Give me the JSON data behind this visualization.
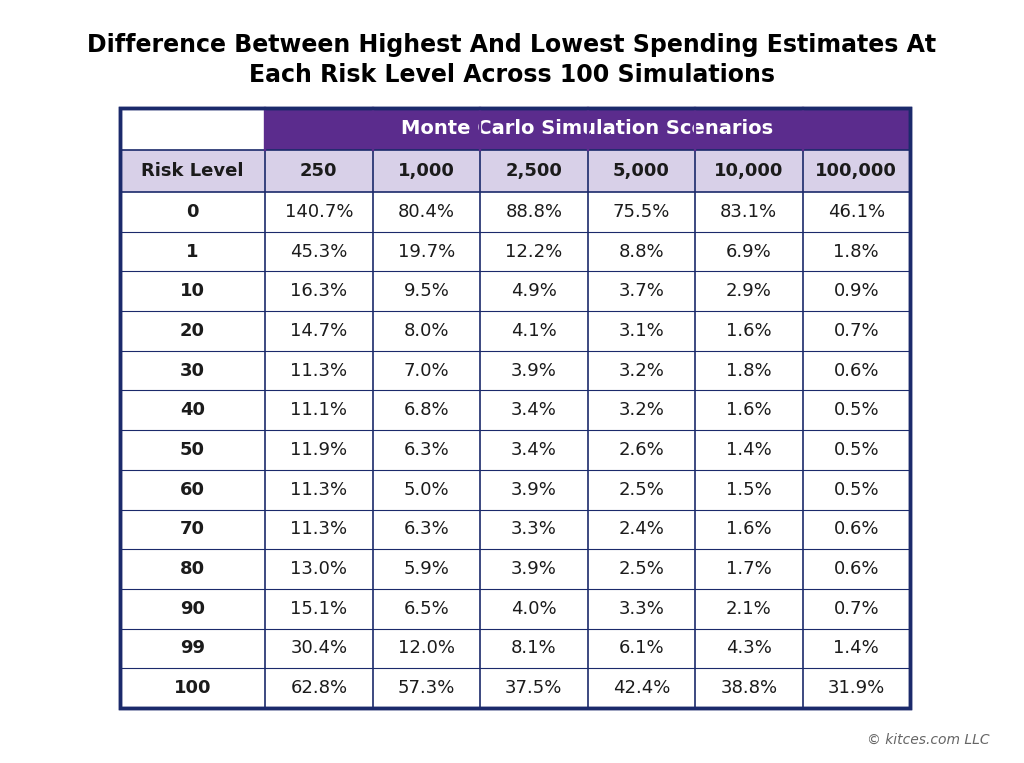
{
  "title_line1": "Difference Between Highest And Lowest Spending Estimates At",
  "title_line2": "Each Risk Level Across 100 Simulations",
  "title_fontsize": 17,
  "header_banner": "Monte Carlo Simulation Scenarios",
  "header_banner_color": "#5B2C8D",
  "header_banner_text_color": "#FFFFFF",
  "col_headers": [
    "Risk Level",
    "250",
    "1,000",
    "2,500",
    "5,000",
    "10,000",
    "100,000"
  ],
  "col_header_bg": "#D8D0E8",
  "col_header_fontsize": 13,
  "col_header_fontweight": "bold",
  "rows": [
    [
      "0",
      "140.7%",
      "80.4%",
      "88.8%",
      "75.5%",
      "83.1%",
      "46.1%"
    ],
    [
      "1",
      "45.3%",
      "19.7%",
      "12.2%",
      "8.8%",
      "6.9%",
      "1.8%"
    ],
    [
      "10",
      "16.3%",
      "9.5%",
      "4.9%",
      "3.7%",
      "2.9%",
      "0.9%"
    ],
    [
      "20",
      "14.7%",
      "8.0%",
      "4.1%",
      "3.1%",
      "1.6%",
      "0.7%"
    ],
    [
      "30",
      "11.3%",
      "7.0%",
      "3.9%",
      "3.2%",
      "1.8%",
      "0.6%"
    ],
    [
      "40",
      "11.1%",
      "6.8%",
      "3.4%",
      "3.2%",
      "1.6%",
      "0.5%"
    ],
    [
      "50",
      "11.9%",
      "6.3%",
      "3.4%",
      "2.6%",
      "1.4%",
      "0.5%"
    ],
    [
      "60",
      "11.3%",
      "5.0%",
      "3.9%",
      "2.5%",
      "1.5%",
      "0.5%"
    ],
    [
      "70",
      "11.3%",
      "6.3%",
      "3.3%",
      "2.4%",
      "1.6%",
      "0.6%"
    ],
    [
      "80",
      "13.0%",
      "5.9%",
      "3.9%",
      "2.5%",
      "1.7%",
      "0.6%"
    ],
    [
      "90",
      "15.1%",
      "6.5%",
      "4.0%",
      "3.3%",
      "2.1%",
      "0.7%"
    ],
    [
      "99",
      "30.4%",
      "12.0%",
      "8.1%",
      "6.1%",
      "4.3%",
      "1.4%"
    ],
    [
      "100",
      "62.8%",
      "57.3%",
      "37.5%",
      "42.4%",
      "38.8%",
      "31.9%"
    ]
  ],
  "data_fontsize": 13,
  "border_color": "#1B2A6B",
  "row_bg": "#FFFFFF",
  "copyright": "© kitces.com LLC",
  "figure_bg": "#FFFFFF",
  "outer_border_color": "#1B2A6B",
  "banner_fontsize": 14
}
